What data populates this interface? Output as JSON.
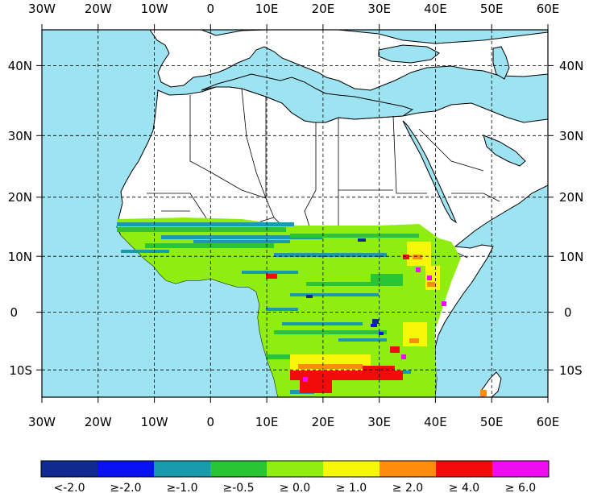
{
  "map": {
    "lon_ticks_top": [
      "30W",
      "20W",
      "10W",
      "0",
      "10E",
      "20E",
      "30E",
      "40E",
      "50E",
      "60E"
    ],
    "lon_ticks_bottom": [
      "30W",
      "20W",
      "10W",
      "0",
      "10E",
      "20E",
      "30E",
      "40E",
      "50E",
      "60E"
    ],
    "lat_ticks_left": [
      "40N",
      "30N",
      "20N",
      "10N",
      "0",
      "10S"
    ],
    "lat_ticks_right": [
      "40N",
      "30N",
      "20N",
      "10N",
      "0",
      "10S"
    ],
    "lon_range": [
      -30,
      60
    ],
    "lat_range": [
      -15,
      47
    ],
    "gridlines": true,
    "gridline_style": "dashed",
    "ocean_color": "#9ee3f2",
    "land_color": "#ffffff",
    "border_color": "#000000"
  },
  "legend": {
    "labels": [
      "<-2.0",
      "≥-2.0",
      "≥-1.0",
      "≥-0.5",
      "≥ 0.0",
      "≥ 1.0",
      "≥ 2.0",
      "≥ 4.0",
      "≥ 6.0"
    ],
    "colors": [
      "#102a8f",
      "#0b12f2",
      "#1a9aad",
      "#29c534",
      "#8fee0f",
      "#f7f70a",
      "#ff8c0a",
      "#f30b0b",
      "#f00cf0"
    ]
  }
}
